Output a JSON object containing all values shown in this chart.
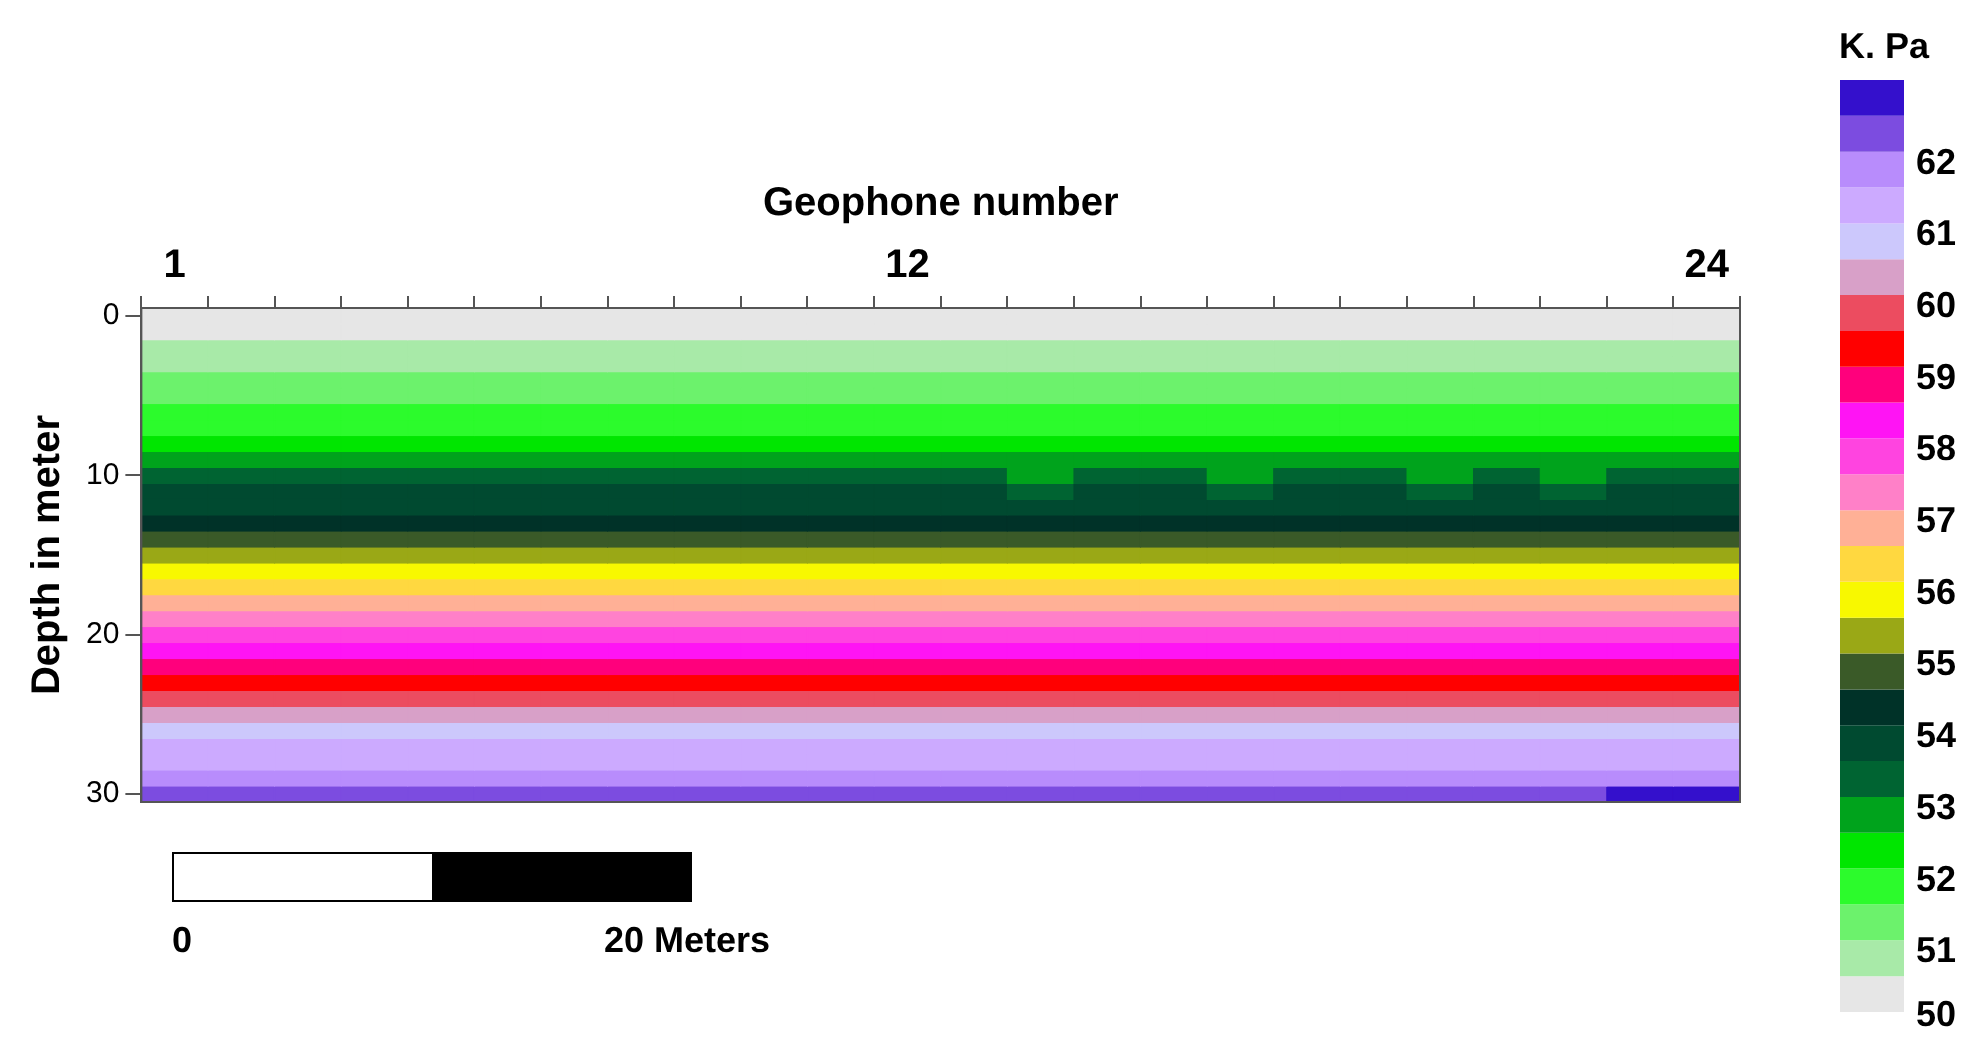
{
  "chart_data": {
    "type": "heatmap",
    "xlabel": "Geophone number",
    "ylabel": "Depth in meter",
    "clabel": "K. Pa",
    "categories": [
      "1",
      null,
      null,
      null,
      null,
      null,
      null,
      null,
      null,
      null,
      null,
      "12",
      null,
      null,
      null,
      null,
      null,
      null,
      null,
      null,
      null,
      null,
      null,
      "24"
    ],
    "y_categories": [
      "0",
      null,
      null,
      null,
      null,
      null,
      null,
      null,
      null,
      null,
      "10",
      null,
      null,
      null,
      null,
      null,
      null,
      null,
      null,
      null,
      "20",
      null,
      null,
      null,
      null,
      null,
      null,
      null,
      null,
      null,
      "30"
    ],
    "clim": [
      50,
      63
    ],
    "cticks": [
      50,
      51,
      52,
      53,
      54,
      55,
      56,
      57,
      58,
      59,
      60,
      61,
      62
    ],
    "colors": [
      "#e6e6e6",
      "#a8eaa8",
      "#6cf26c",
      "#2cfb2c",
      "#00e600",
      "#00a31c",
      "#006432",
      "#004a30",
      "#003228",
      "#3a5a28",
      "#9aa816",
      "#f8f800",
      "#ffd840",
      "#ffb096",
      "#ff80c8",
      "#ff44e0",
      "#ff14f4",
      "#ff007c",
      "#ff0000",
      "#ec4c60",
      "#d8a0c8",
      "#ccc8fc",
      "#ccaaff",
      "#b88cfc",
      "#7c4ce0",
      "#3410cc"
    ],
    "cells": [
      [
        50.2,
        50.2,
        50.2,
        50.2,
        50.2,
        50.2,
        50.2,
        50.2,
        50.2,
        50.2,
        50.2,
        50.2,
        50.2,
        50.2,
        50.2,
        50.2,
        50.2,
        50.2,
        50.2,
        50.2,
        50.2,
        50.2,
        50.2,
        50.2
      ],
      [
        50.3,
        50.3,
        50.3,
        50.3,
        50.3,
        50.3,
        50.3,
        50.3,
        50.3,
        50.3,
        50.3,
        50.3,
        50.3,
        50.3,
        50.3,
        50.3,
        50.3,
        50.3,
        50.3,
        50.3,
        50.3,
        50.3,
        50.3,
        50.3
      ],
      [
        50.6,
        50.6,
        50.6,
        50.6,
        50.6,
        50.6,
        50.6,
        50.6,
        50.6,
        50.6,
        50.6,
        50.6,
        50.6,
        50.6,
        50.6,
        50.6,
        50.6,
        50.6,
        50.6,
        50.6,
        50.6,
        50.6,
        50.6,
        50.6
      ],
      [
        50.9,
        50.9,
        50.9,
        50.9,
        50.9,
        50.9,
        50.9,
        50.9,
        50.9,
        50.9,
        50.9,
        50.9,
        50.9,
        50.9,
        50.9,
        50.9,
        50.9,
        50.9,
        50.9,
        50.9,
        50.9,
        50.9,
        50.9,
        50.9
      ],
      [
        51.1,
        51.1,
        51.1,
        51.1,
        51.1,
        51.1,
        51.1,
        51.1,
        51.1,
        51.1,
        51.1,
        51.1,
        51.1,
        51.1,
        51.1,
        51.1,
        51.1,
        51.1,
        51.1,
        51.1,
        51.1,
        51.1,
        51.1,
        51.1
      ],
      [
        51.4,
        51.4,
        51.4,
        51.4,
        51.4,
        51.4,
        51.4,
        51.4,
        51.4,
        51.4,
        51.4,
        51.4,
        51.4,
        51.4,
        51.4,
        51.4,
        51.4,
        51.4,
        51.4,
        51.4,
        51.4,
        51.4,
        51.4,
        51.4
      ],
      [
        51.6,
        51.6,
        51.6,
        51.6,
        51.6,
        51.6,
        51.6,
        51.6,
        51.6,
        51.6,
        51.6,
        51.6,
        51.6,
        51.6,
        51.6,
        51.6,
        51.6,
        51.6,
        51.6,
        51.6,
        51.6,
        51.6,
        51.6,
        51.6
      ],
      [
        51.9,
        51.9,
        51.9,
        51.9,
        51.9,
        51.9,
        51.9,
        51.9,
        51.9,
        51.9,
        51.9,
        51.9,
        51.9,
        51.9,
        51.9,
        51.9,
        51.9,
        51.9,
        51.9,
        51.9,
        51.9,
        51.9,
        51.9,
        51.9
      ],
      [
        52.3,
        52.3,
        52.3,
        52.3,
        52.3,
        52.3,
        52.3,
        52.3,
        52.3,
        52.3,
        52.3,
        52.3,
        52.3,
        52.3,
        52.3,
        52.3,
        52.3,
        52.3,
        52.3,
        52.3,
        52.3,
        52.3,
        52.3,
        52.3
      ],
      [
        52.7,
        52.7,
        52.7,
        52.7,
        52.7,
        52.7,
        52.7,
        52.7,
        52.7,
        52.7,
        52.7,
        52.7,
        52.7,
        52.7,
        52.7,
        52.7,
        52.7,
        52.7,
        52.7,
        52.7,
        52.7,
        52.7,
        52.7,
        52.7
      ],
      [
        53.1,
        53.1,
        53.1,
        53.1,
        53.1,
        53.1,
        53.1,
        53.1,
        53.1,
        53.1,
        53.1,
        53.1,
        53.1,
        52.9,
        53.1,
        53.1,
        52.9,
        53.1,
        53.1,
        52.9,
        53.1,
        52.9,
        53.1,
        53.1
      ],
      [
        53.6,
        53.6,
        53.6,
        53.6,
        53.6,
        53.6,
        53.6,
        53.6,
        53.6,
        53.6,
        53.6,
        53.6,
        53.6,
        53.4,
        53.6,
        53.6,
        53.4,
        53.6,
        53.6,
        53.4,
        53.6,
        53.4,
        53.6,
        53.6
      ],
      [
        53.9,
        53.9,
        53.9,
        53.9,
        53.9,
        53.9,
        53.9,
        53.9,
        53.9,
        53.9,
        53.9,
        53.9,
        53.9,
        53.6,
        53.9,
        53.9,
        53.6,
        53.9,
        53.9,
        53.6,
        53.9,
        53.6,
        53.9,
        53.9
      ],
      [
        54.3,
        54.3,
        54.3,
        54.3,
        54.3,
        54.3,
        54.3,
        54.3,
        54.3,
        54.3,
        54.3,
        54.3,
        54.3,
        54.0,
        54.3,
        54.3,
        54.0,
        54.3,
        54.3,
        54.0,
        54.3,
        54.0,
        54.3,
        54.3
      ],
      [
        54.8,
        54.8,
        54.8,
        54.8,
        54.8,
        54.8,
        54.8,
        54.8,
        54.8,
        54.8,
        54.8,
        54.8,
        54.8,
        54.5,
        54.8,
        54.8,
        54.5,
        54.8,
        54.8,
        54.5,
        54.8,
        54.5,
        54.8,
        54.8
      ],
      [
        55.2,
        55.2,
        55.2,
        55.2,
        55.2,
        55.2,
        55.2,
        55.2,
        55.2,
        55.2,
        55.2,
        55.2,
        55.2,
        55.2,
        55.2,
        55.2,
        55.2,
        55.2,
        55.2,
        55.2,
        55.2,
        55.2,
        55.2,
        55.2
      ],
      [
        55.8,
        55.8,
        55.8,
        55.8,
        55.8,
        55.8,
        55.8,
        55.8,
        55.8,
        55.8,
        55.8,
        55.8,
        55.8,
        55.8,
        55.8,
        55.8,
        55.8,
        55.8,
        55.8,
        55.8,
        55.8,
        55.8,
        55.8,
        55.8
      ],
      [
        56.2,
        56.2,
        56.2,
        56.2,
        56.2,
        56.2,
        56.2,
        56.2,
        56.2,
        56.2,
        56.2,
        56.2,
        56.2,
        56.2,
        56.2,
        56.2,
        56.2,
        56.2,
        56.2,
        56.2,
        56.2,
        56.2,
        56.2,
        56.2
      ],
      [
        56.6,
        56.6,
        56.6,
        56.6,
        56.6,
        56.6,
        56.6,
        56.6,
        56.6,
        56.6,
        56.6,
        56.6,
        56.6,
        56.6,
        56.6,
        56.6,
        56.6,
        56.6,
        56.6,
        56.6,
        56.6,
        56.6,
        56.6,
        56.6
      ],
      [
        57.3,
        57.3,
        57.3,
        57.3,
        57.3,
        57.3,
        57.3,
        57.3,
        57.3,
        57.3,
        57.3,
        57.3,
        57.3,
        57.3,
        57.3,
        57.3,
        57.3,
        57.3,
        57.3,
        57.3,
        57.3,
        57.3,
        57.3,
        57.3
      ],
      [
        57.6,
        57.6,
        57.6,
        57.6,
        57.6,
        57.6,
        57.6,
        57.6,
        57.6,
        57.6,
        57.6,
        57.6,
        57.6,
        57.6,
        57.6,
        57.6,
        57.6,
        57.6,
        57.6,
        57.6,
        57.6,
        57.6,
        57.6,
        57.6
      ],
      [
        58.2,
        58.2,
        58.2,
        58.2,
        58.2,
        58.2,
        58.2,
        58.2,
        58.2,
        58.2,
        58.2,
        58.2,
        58.2,
        58.2,
        58.2,
        58.2,
        58.2,
        58.2,
        58.2,
        58.2,
        58.2,
        58.2,
        58.2,
        58.2
      ],
      [
        58.8,
        58.8,
        58.8,
        58.8,
        58.8,
        58.8,
        58.8,
        58.8,
        58.8,
        58.8,
        58.8,
        58.8,
        58.8,
        58.8,
        58.8,
        58.8,
        58.8,
        58.8,
        58.8,
        58.8,
        58.8,
        58.8,
        58.8,
        58.8
      ],
      [
        59.3,
        59.3,
        59.3,
        59.3,
        59.3,
        59.3,
        59.3,
        59.3,
        59.3,
        59.3,
        59.3,
        59.3,
        59.3,
        59.3,
        59.3,
        59.3,
        59.3,
        59.3,
        59.3,
        59.3,
        59.3,
        59.3,
        59.3,
        59.3
      ],
      [
        59.8,
        59.8,
        59.8,
        59.8,
        59.8,
        59.8,
        59.8,
        59.8,
        59.8,
        59.8,
        59.8,
        59.8,
        59.8,
        59.8,
        59.8,
        59.8,
        59.8,
        59.8,
        59.8,
        59.8,
        59.8,
        59.8,
        59.8,
        59.8
      ],
      [
        60.3,
        60.3,
        60.3,
        60.3,
        60.3,
        60.3,
        60.3,
        60.3,
        60.3,
        60.3,
        60.3,
        60.3,
        60.3,
        60.3,
        60.3,
        60.3,
        60.3,
        60.3,
        60.3,
        60.3,
        60.3,
        60.3,
        60.3,
        60.3
      ],
      [
        60.6,
        60.6,
        60.6,
        60.6,
        60.6,
        60.6,
        60.6,
        60.6,
        60.6,
        60.6,
        60.6,
        60.6,
        60.6,
        60.6,
        60.6,
        60.6,
        60.6,
        60.6,
        60.6,
        60.6,
        60.6,
        60.6,
        60.6,
        60.6
      ],
      [
        61.1,
        61.1,
        61.1,
        61.1,
        61.1,
        61.1,
        61.1,
        61.1,
        61.1,
        61.1,
        61.1,
        61.1,
        61.1,
        61.1,
        61.1,
        61.1,
        61.1,
        61.1,
        61.1,
        61.1,
        61.1,
        61.1,
        61.1,
        61.1
      ],
      [
        61.4,
        61.4,
        61.4,
        61.4,
        61.4,
        61.4,
        61.4,
        61.4,
        61.4,
        61.4,
        61.4,
        61.4,
        61.4,
        61.4,
        61.4,
        61.4,
        61.4,
        61.4,
        61.4,
        61.4,
        61.4,
        61.4,
        61.4,
        61.4
      ],
      [
        61.9,
        61.9,
        61.9,
        61.9,
        61.9,
        61.9,
        61.9,
        61.9,
        61.9,
        61.9,
        61.9,
        61.9,
        61.9,
        61.9,
        61.9,
        61.9,
        61.9,
        61.9,
        61.9,
        61.9,
        61.9,
        61.9,
        61.9,
        61.9
      ],
      [
        62.2,
        62.2,
        62.2,
        62.2,
        62.2,
        62.2,
        62.2,
        62.2,
        62.2,
        62.2,
        62.2,
        62.2,
        62.2,
        62.2,
        62.2,
        62.2,
        62.2,
        62.2,
        62.2,
        62.2,
        62.2,
        62.2,
        62.6,
        62.6
      ]
    ],
    "annotations": [
      "0",
      "20 Meters"
    ]
  }
}
